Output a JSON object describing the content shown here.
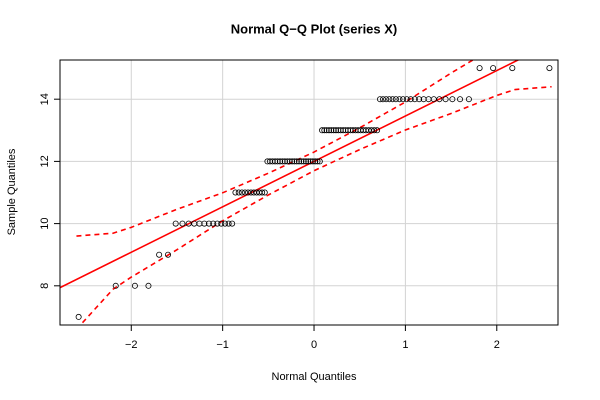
{
  "chart_data": {
    "type": "qq",
    "title": "Normal Q−Q Plot (series X)",
    "x_label": "Normal Quantiles",
    "y_label": "Sample Quantiles",
    "xlim": [
      -2.78,
      2.67
    ],
    "ylim": [
      6.74,
      15.26
    ],
    "xticks": [
      {
        "value": -2,
        "label": "−2"
      },
      {
        "value": -1,
        "label": "−1"
      },
      0,
      1,
      2
    ],
    "yticks": [
      8,
      10,
      12,
      14
    ],
    "grid": true,
    "points": {
      "color": "#000000",
      "x": [
        -2.576,
        -2.17,
        -1.96,
        -1.812,
        -1.695,
        -1.598,
        -1.514,
        -1.44,
        -1.372,
        -1.311,
        -1.254,
        -1.2,
        -1.15,
        -1.103,
        -1.058,
        -1.015,
        -0.974,
        -0.935,
        -0.896,
        -0.86,
        -0.824,
        -0.789,
        -0.755,
        -0.722,
        -0.69,
        -0.659,
        -0.628,
        -0.598,
        -0.568,
        -0.539,
        -0.51,
        -0.482,
        -0.454,
        -0.426,
        -0.399,
        -0.372,
        -0.345,
        -0.319,
        -0.292,
        -0.266,
        -0.24,
        -0.215,
        -0.189,
        -0.164,
        -0.138,
        -0.113,
        -0.088,
        -0.063,
        -0.038,
        -0.013,
        0.013,
        0.038,
        0.063,
        0.088,
        0.113,
        0.138,
        0.164,
        0.189,
        0.215,
        0.24,
        0.266,
        0.292,
        0.319,
        0.345,
        0.372,
        0.399,
        0.426,
        0.454,
        0.482,
        0.51,
        0.539,
        0.568,
        0.598,
        0.628,
        0.659,
        0.69,
        0.722,
        0.755,
        0.789,
        0.824,
        0.86,
        0.896,
        0.935,
        0.974,
        1.015,
        1.058,
        1.103,
        1.15,
        1.2,
        1.254,
        1.311,
        1.372,
        1.44,
        1.514,
        1.598,
        1.695,
        1.812,
        1.96,
        2.17,
        2.576
      ],
      "y": [
        7,
        8,
        8,
        8,
        9,
        9,
        10,
        10,
        10,
        10,
        10,
        10,
        10,
        10,
        10,
        10,
        10,
        10,
        10,
        11,
        11,
        11,
        11,
        11,
        11,
        11,
        11,
        11,
        11,
        11,
        12,
        12,
        12,
        12,
        12,
        12,
        12,
        12,
        12,
        12,
        12,
        12,
        12,
        12,
        12,
        12,
        12,
        12,
        12,
        12,
        12,
        12,
        12,
        13,
        13,
        13,
        13,
        13,
        13,
        13,
        13,
        13,
        13,
        13,
        13,
        13,
        13,
        13,
        13,
        13,
        13,
        13,
        13,
        13,
        13,
        13,
        14,
        14,
        14,
        14,
        14,
        14,
        14,
        14,
        14,
        14,
        14,
        14,
        14,
        14,
        14,
        14,
        14,
        14,
        14,
        14,
        15,
        15,
        15,
        15
      ]
    },
    "ref_line": {
      "color": "#ff0000",
      "intercept": 12.0,
      "slope": 1.46
    },
    "bands": {
      "color": "#ff0000",
      "x": [
        -2.6,
        -2.2,
        -2,
        -1.5,
        -1,
        -0.5,
        0,
        0.5,
        1,
        1.5,
        2,
        2.2,
        2.6
      ],
      "upper": [
        9.6,
        9.69,
        9.88,
        10.46,
        10.99,
        11.62,
        12.3,
        13.08,
        13.91,
        14.84,
        15.72,
        16.11,
        17.2
      ],
      "lower": [
        6.6,
        7.89,
        8.28,
        9.16,
        10.09,
        10.92,
        11.7,
        12.38,
        13.01,
        13.54,
        14.12,
        14.31,
        14.4
      ]
    }
  }
}
